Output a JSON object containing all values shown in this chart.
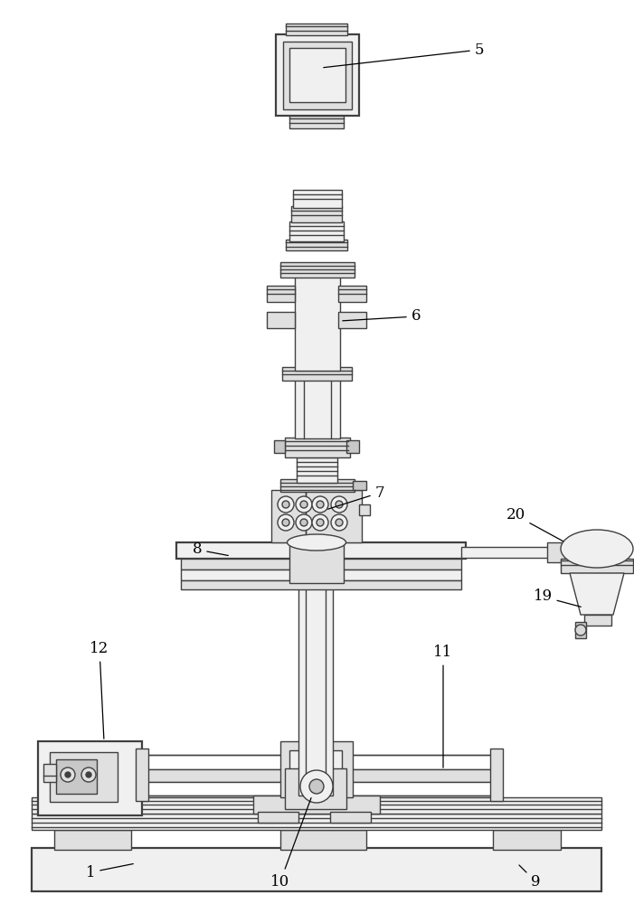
{
  "bg": "#ffffff",
  "lc": "#404040",
  "lw": 1.0,
  "lw2": 1.6,
  "fw": 7.01,
  "fh": 10.0,
  "dpi": 100,
  "fc0": "#ffffff",
  "fc1": "#f0f0f0",
  "fc2": "#e0e0e0",
  "fc3": "#c8c8c8",
  "fc4": "#d8d8d8"
}
